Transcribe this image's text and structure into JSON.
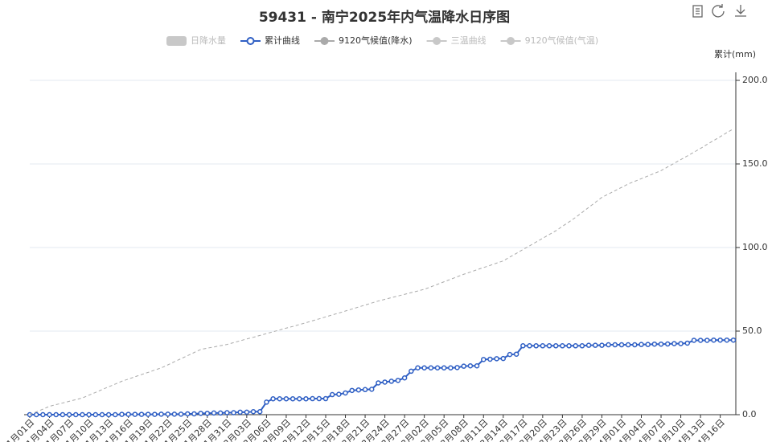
{
  "chart_data": {
    "type": "line",
    "title": "59431 - 南宁2025年内气温降水日序图",
    "y_label": "累计(mm)",
    "categories": [
      "1月01日",
      null,
      null,
      "1月04日",
      null,
      null,
      "1月07日",
      null,
      null,
      "1月10日",
      null,
      null,
      "1月13日",
      null,
      null,
      "1月16日",
      null,
      null,
      "1月19日",
      null,
      null,
      "1月22日",
      null,
      null,
      "1月25日",
      null,
      null,
      "1月28日",
      null,
      null,
      "1月31日",
      null,
      null,
      "2月03日",
      null,
      null,
      "2月06日",
      null,
      null,
      "2月09日",
      null,
      null,
      "2月12日",
      null,
      null,
      "2月15日",
      null,
      null,
      "2月18日",
      null,
      null,
      "2月21日",
      null,
      null,
      "2月24日",
      null,
      null,
      "2月27日",
      null,
      null,
      "3月02日",
      null,
      null,
      "3月05日",
      null,
      null,
      "3月08日",
      null,
      null,
      "3月11日",
      null,
      null,
      "3月14日",
      null,
      null,
      "3月17日",
      null,
      null,
      "3月20日",
      null,
      null,
      "3月23日",
      null,
      null,
      "3月26日",
      null,
      null,
      "3月29日",
      null,
      null,
      "4月01日",
      null,
      null,
      "4月04日",
      null,
      null,
      "4月07日",
      null,
      null,
      "4月10日",
      null,
      null,
      "4月13日",
      null,
      null,
      "4月16日",
      null,
      null
    ],
    "series": [
      {
        "name": "日降水量",
        "color": "#c8c8c8",
        "visible": false,
        "symbol": "rect"
      },
      {
        "name": "累计曲线",
        "color": "#2f5fc4",
        "visible": true,
        "symbol": "circle",
        "dashed": false,
        "values": [
          0,
          0,
          0,
          0,
          0,
          0,
          0,
          0,
          0,
          0,
          0,
          0,
          0,
          0,
          0.2,
          0.2,
          0.2,
          0.2,
          0.2,
          0.2,
          0.3,
          0.3,
          0.3,
          0.3,
          0.5,
          0.5,
          0.8,
          0.8,
          1.0,
          1.0,
          1.2,
          1.2,
          1.5,
          1.5,
          1.8,
          1.8,
          7.5,
          9.5,
          9.5,
          9.5,
          9.5,
          9.5,
          9.5,
          9.6,
          9.6,
          9.6,
          12.0,
          12.2,
          13.0,
          14.5,
          14.8,
          15.0,
          15.2,
          19.0,
          19.5,
          20.0,
          20.5,
          22.0,
          26.0,
          28.0,
          28.0,
          28.0,
          28.0,
          28.0,
          28.0,
          28.2,
          29.0,
          29.2,
          29.2,
          33.0,
          33.2,
          33.5,
          33.6,
          36.0,
          36.2,
          41.2,
          41.2,
          41.2,
          41.2,
          41.2,
          41.2,
          41.2,
          41.2,
          41.2,
          41.2,
          41.5,
          41.5,
          41.5,
          41.8,
          41.8,
          41.8,
          41.8,
          41.8,
          42.0,
          42.0,
          42.2,
          42.2,
          42.3,
          42.5,
          42.5,
          42.8,
          44.5,
          44.5,
          44.5,
          44.6,
          44.6,
          44.6,
          44.6
        ]
      },
      {
        "name": "9120气候值(降水)",
        "color": "#aaaaaa",
        "visible": true,
        "symbol": "circle",
        "dashed": true,
        "values": [
          0,
          1.7,
          3.3,
          5,
          6,
          7,
          8,
          9,
          10,
          11.7,
          13.3,
          15,
          16.7,
          18.3,
          20,
          21.3,
          22.7,
          24,
          25.3,
          26.7,
          28,
          29.8,
          31.7,
          33.5,
          35.3,
          37.2,
          39,
          39.8,
          40.5,
          41.3,
          42,
          43.1,
          44.2,
          45.3,
          46.3,
          47.4,
          48.5,
          49.6,
          50.7,
          51.8,
          52.8,
          53.9,
          55,
          56.2,
          57.3,
          58.5,
          59.7,
          60.8,
          62,
          63.2,
          64.4,
          65.6,
          66.8,
          68,
          69,
          70,
          71,
          72,
          73,
          74,
          75,
          76.5,
          78,
          79.5,
          81,
          82.5,
          84,
          85.3,
          86.7,
          88,
          89.3,
          90.7,
          92,
          94.3,
          96.5,
          98.8,
          101,
          103.3,
          105.5,
          107.8,
          110,
          112.7,
          115.3,
          118,
          121,
          124,
          127,
          130,
          132,
          134,
          136,
          138,
          139.6,
          141.2,
          142.8,
          144.4,
          146,
          148.2,
          150.4,
          152.6,
          154.8,
          157,
          159.3,
          161.7,
          164,
          166.3,
          168.7,
          171
        ]
      },
      {
        "name": "三温曲线",
        "color": "#c8c8c8",
        "visible": false,
        "symbol": "circle"
      },
      {
        "name": "9120气候值(气温)",
        "color": "#c8c8c8",
        "visible": false,
        "symbol": "circle"
      }
    ],
    "ylim": [
      0,
      200
    ],
    "yticks": [
      {
        "value": 0,
        "label": "0.0"
      },
      {
        "value": 50,
        "label": "50.0"
      },
      {
        "value": 100,
        "label": "100.0"
      },
      {
        "value": 150,
        "label": "150.0"
      },
      {
        "value": 200,
        "label": "200.0"
      }
    ],
    "y_axis_side": "right",
    "grid": true
  }
}
